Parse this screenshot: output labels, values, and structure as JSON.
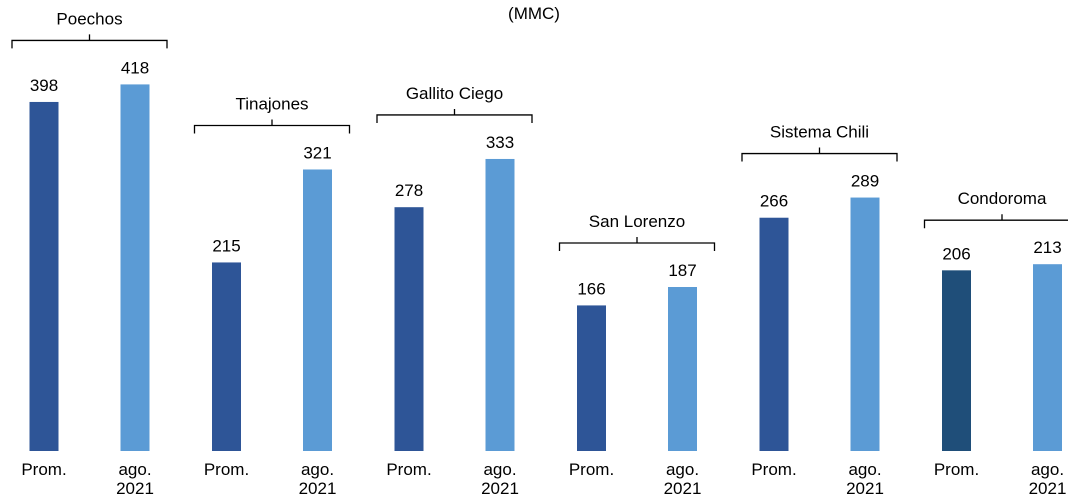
{
  "chart_data": {
    "type": "bar",
    "subtitle": "(MMC)",
    "groups": [
      {
        "name": "Poechos",
        "values": [
          398,
          418
        ]
      },
      {
        "name": "Tinajones",
        "values": [
          215,
          321
        ]
      },
      {
        "name": "Gallito Ciego",
        "values": [
          278,
          333
        ]
      },
      {
        "name": "San Lorenzo",
        "values": [
          166,
          187
        ]
      },
      {
        "name": "Sistema Chili",
        "values": [
          266,
          289
        ]
      },
      {
        "name": "Condoroma",
        "values": [
          206,
          213
        ]
      }
    ],
    "bar_labels": [
      [
        "Prom."
      ],
      [
        "ago.",
        "2021"
      ]
    ],
    "colors": {
      "prom": "#2E5597",
      "current": "#5B9BD5",
      "prom_last": "#1F4E79"
    }
  }
}
